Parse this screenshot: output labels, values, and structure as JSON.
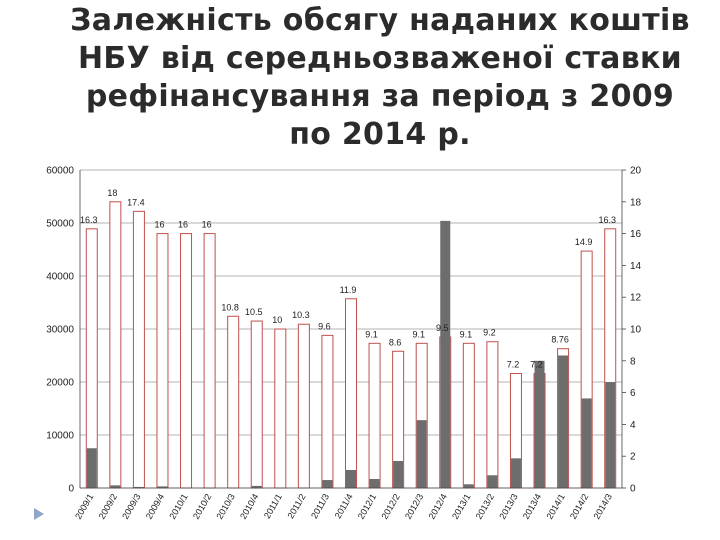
{
  "title_lines": [
    "Залежність обсягу наданих коштів",
    "НБУ від середньозваженої ставки",
    "рефінансування за період з 2009",
    "по 2014 р."
  ],
  "chart_data": {
    "type": "bar",
    "title": "Залежність обсягу наданих коштів НБУ від середньозваженої ставки рефінансування за період з 2009 по 2014 р.",
    "categories": [
      "2009/1",
      "2009/2",
      "2009/3",
      "2009/4",
      "2010/1",
      "2010/2",
      "2010/3",
      "2010/4",
      "2011/1",
      "2011/2",
      "2011/3",
      "2011/4",
      "2012/1",
      "2012/2",
      "2012/3",
      "2012/4",
      "2013/1",
      "2013/2",
      "2013/3",
      "2013/4",
      "2014/1",
      "2014/2",
      "2014/3"
    ],
    "series": [
      {
        "axis": "right",
        "style": "outline",
        "color": "#c0504d",
        "values": [
          16.3,
          18,
          17.4,
          16,
          16,
          16,
          10.8,
          10.5,
          10,
          10.3,
          9.6,
          11.9,
          9.1,
          8.6,
          9.1,
          9.5,
          9.1,
          9.2,
          7.2,
          7.2,
          8.76,
          14.9,
          16.3
        ]
      },
      {
        "axis": "left",
        "style": "filled",
        "color": "#6d6d6d",
        "values": [
          7500,
          500,
          200,
          300,
          0,
          0,
          0,
          400,
          0,
          0,
          1500,
          3400,
          1700,
          5100,
          12800,
          50400,
          700,
          2400,
          5600,
          24000,
          25000,
          16900,
          20000
        ]
      }
    ],
    "y_left": {
      "min": 0,
      "max": 60000,
      "ticks": [
        0,
        10000,
        20000,
        30000,
        40000,
        50000,
        60000
      ]
    },
    "y_right": {
      "min": 0,
      "max": 20,
      "ticks": [
        0,
        2,
        4,
        6,
        8,
        10,
        12,
        14,
        16,
        18,
        20
      ]
    },
    "bar_labels": [
      "16.3",
      "18",
      "17.4",
      "16",
      "16",
      "16",
      "10.8",
      "10.5",
      "10",
      "10.3",
      "9.6",
      "11.9",
      "9.1",
      "8.6",
      "9.1",
      "9.5",
      "9.1",
      "9.2",
      "7.2",
      "7.2",
      "8.76",
      "14.9",
      "16.3"
    ],
    "grid": true,
    "legend": "none"
  },
  "colors": {
    "outline": "#c0504d",
    "filled": "#6d6d6d",
    "grid": "#9a9a9a",
    "axis": "#444444"
  }
}
